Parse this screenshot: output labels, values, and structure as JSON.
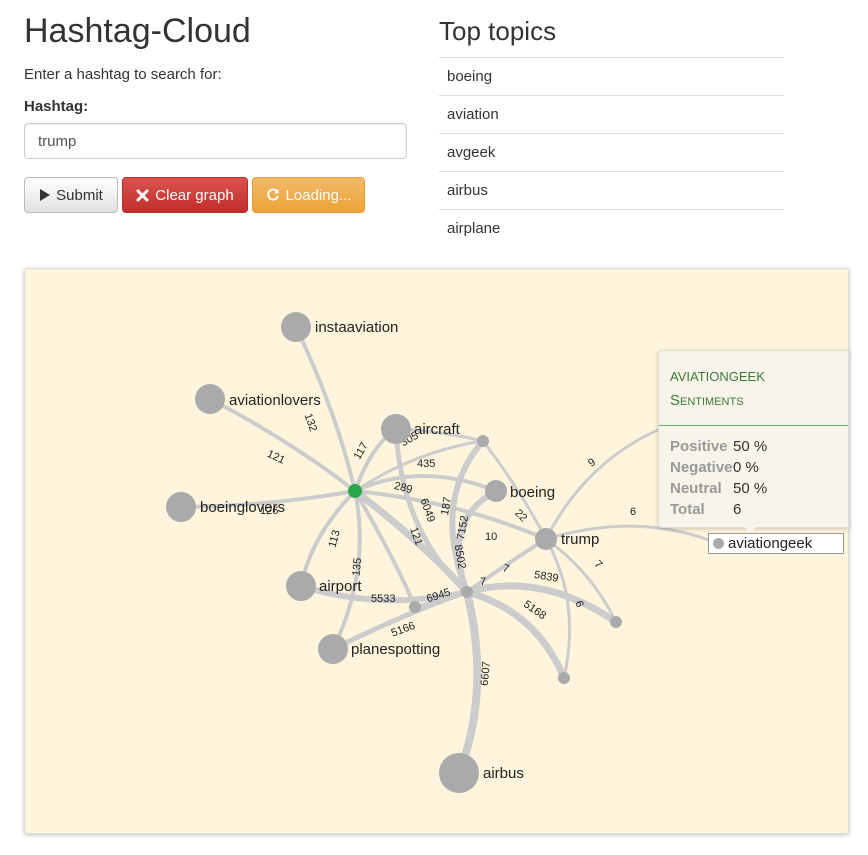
{
  "header": {
    "title": "Hashtag-Cloud",
    "subtitle": "Enter a hashtag to search for:",
    "field_label": "Hashtag:"
  },
  "search": {
    "value": "trump"
  },
  "buttons": {
    "submit": "Submit",
    "clear": "Clear graph",
    "loading": "Loading..."
  },
  "icons": {
    "submit": "play-icon",
    "clear": "times-icon",
    "loading": "refresh-icon"
  },
  "colors": {
    "graph_background": "#fff5dc",
    "node": "#aaaaaa",
    "hub_node": "#2ca64b",
    "edge": "#cccccc",
    "danger": "#d9534f",
    "warning": "#f0ad4e",
    "sentiment_accent": "#3b7a3b"
  },
  "topics": {
    "title": "Top topics",
    "items": [
      "boeing",
      "aviation",
      "avgeek",
      "airbus",
      "airplane"
    ]
  },
  "graph": {
    "nodes": {
      "instaaviation": "instaaviation",
      "aviationlovers": "aviationlovers",
      "aircraft": "aircraft",
      "boeing": "boeing",
      "boeinglovers": "boeinglovers",
      "trump": "trump",
      "airport": "airport",
      "planespotting": "planespotting",
      "airbus": "airbus"
    },
    "edge_labels": {
      "e132": "132",
      "e121a": "121",
      "e117": "117",
      "e305": "305",
      "e435": "435",
      "e289": "289",
      "e6049": "6049",
      "e187": "187",
      "e7152": "7152",
      "e8502": "8502",
      "e22": "22",
      "e10": "10",
      "e121b": "121",
      "e113": "113",
      "e135": "135",
      "e5533": "5533",
      "e6945": "6945",
      "e5166": "5166",
      "e7a": "7",
      "e7b": "7",
      "e5839": "5839",
      "e5168": "5168",
      "e6a": "6",
      "e7c": "7",
      "e6607": "6607",
      "e9": "9",
      "e6b": "6",
      "e126": "126"
    }
  },
  "tooltip": {
    "name": "aviationgeek",
    "heading": "Sentiments",
    "positive_label": "Positive",
    "positive_value": "50 %",
    "negative_label": "Negative",
    "negative_value": "0 %",
    "neutral_label": "Neutral",
    "neutral_value": "50 %",
    "total_label": "Total",
    "total_value": "6"
  },
  "hover_node": {
    "label": "aviationgeek"
  }
}
